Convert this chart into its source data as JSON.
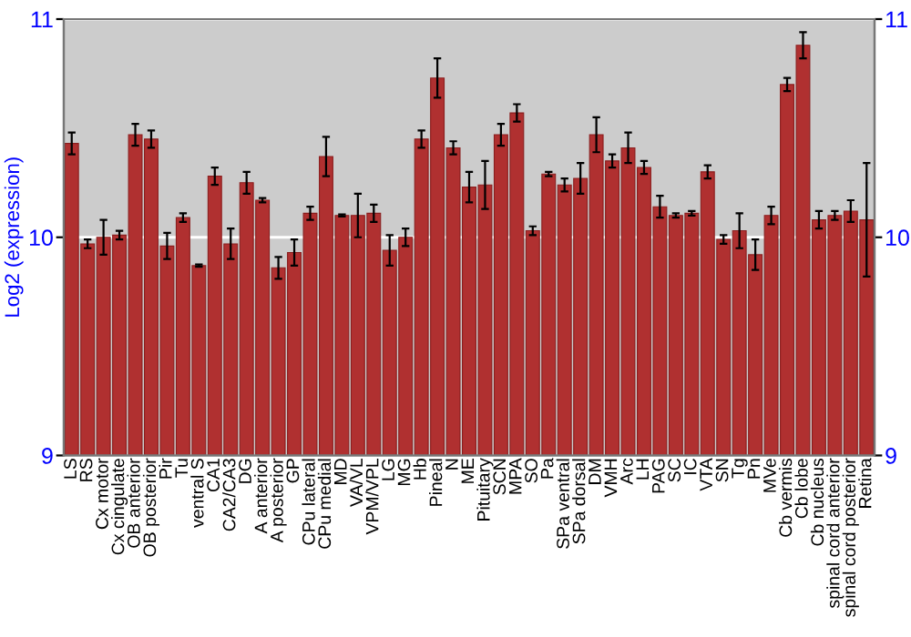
{
  "chart_data": {
    "type": "bar",
    "ylabel": "Log2 (expression)",
    "categories": [
      "LS",
      "RS",
      "Cx motor",
      "Cx cingulate",
      "OB anterior",
      "OB posterior",
      "Pir",
      "Tu",
      "ventral S",
      "CA1",
      "CA2/CA3",
      "DG",
      "A anterior",
      "A posterior",
      "GP",
      "CPu lateral",
      "CPu medial",
      "MD",
      "VA/VL",
      "VPM/VPL",
      "LG",
      "MG",
      "Hb",
      "Pineal",
      "N",
      "ME",
      "Pituitary",
      "SCN",
      "MPA",
      "SO",
      "Pa",
      "SPa ventral",
      "SPa dorsal",
      "DM",
      "VMH",
      "Arc",
      "LH",
      "PAG",
      "SC",
      "IC",
      "VTA",
      "SN",
      "Tg",
      "Pn",
      "MVe",
      "Cb vermis",
      "Cb lobe",
      "Cb nucleus",
      "spinal cord anterior",
      "spinal cord posterior",
      "Retina"
    ],
    "values": [
      10.43,
      9.97,
      10.0,
      10.01,
      10.47,
      10.45,
      9.96,
      10.09,
      9.87,
      10.28,
      9.97,
      10.25,
      10.17,
      9.86,
      9.93,
      10.11,
      10.37,
      10.1,
      10.1,
      10.11,
      9.94,
      10.0,
      10.45,
      10.73,
      10.41,
      10.23,
      10.24,
      10.47,
      10.57,
      10.03,
      10.29,
      10.24,
      10.27,
      10.47,
      10.35,
      10.41,
      10.32,
      10.14,
      10.1,
      10.11,
      10.3,
      9.99,
      10.03,
      9.92,
      10.1,
      10.7,
      10.88,
      10.08,
      10.1,
      10.12,
      10.08
    ],
    "errors": [
      0.05,
      0.02,
      0.08,
      0.02,
      0.05,
      0.04,
      0.06,
      0.02,
      0.005,
      0.04,
      0.07,
      0.05,
      0.01,
      0.05,
      0.06,
      0.03,
      0.09,
      0.005,
      0.1,
      0.04,
      0.07,
      0.04,
      0.04,
      0.09,
      0.03,
      0.07,
      0.11,
      0.05,
      0.04,
      0.02,
      0.01,
      0.03,
      0.07,
      0.08,
      0.03,
      0.07,
      0.03,
      0.05,
      0.01,
      0.01,
      0.03,
      0.02,
      0.08,
      0.07,
      0.04,
      0.03,
      0.06,
      0.04,
      0.02,
      0.05,
      0.26
    ],
    "color": "#b03030",
    "ylim": [
      9,
      11
    ],
    "yticks": [
      9,
      10,
      11
    ],
    "y2lim": [
      9,
      11
    ],
    "y2ticks": [
      9,
      10,
      11
    ],
    "grid": "y"
  }
}
